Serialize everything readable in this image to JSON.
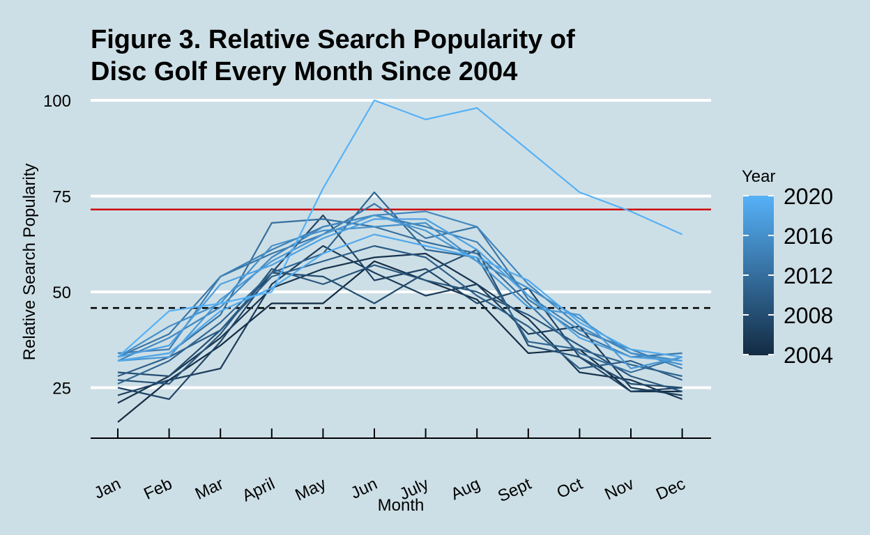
{
  "chart_data": {
    "type": "line",
    "title_line1": "Figure 3. Relative Search Popularity of",
    "title_line2": "Disc Golf Every Month Since 2004",
    "xlabel": "Month",
    "ylabel": "Relative Search Popularity",
    "categories": [
      "Jan",
      "Feb",
      "Mar",
      "April",
      "May",
      "Jun",
      "July",
      "Aug",
      "Sept",
      "Oct",
      "Nov",
      "Dec"
    ],
    "ylim": [
      13,
      105
    ],
    "yticks": [
      25,
      50,
      75,
      100
    ],
    "hlines": [
      {
        "y": 71.5,
        "style": "solid",
        "color": "#cc0000"
      },
      {
        "y": 45.8,
        "style": "dashed",
        "color": "#000000"
      }
    ],
    "legend": {
      "title": "Year",
      "placement": "right",
      "labels": [
        "2020",
        "2016",
        "2012",
        "2008",
        "2004"
      ],
      "color_low": "#132b43",
      "color_high": "#56b1f7"
    },
    "series": [
      {
        "year": 2004,
        "values": [
          16,
          27,
          36,
          47,
          47,
          58,
          53,
          48,
          34,
          35,
          24,
          24
        ]
      },
      {
        "year": 2005,
        "values": [
          21,
          28,
          38,
          51,
          56,
          59,
          60,
          52,
          43,
          29,
          27,
          22
        ]
      },
      {
        "year": 2006,
        "values": [
          23,
          27,
          30,
          52,
          62,
          55,
          49,
          52,
          39,
          41,
          25,
          23
        ]
      },
      {
        "year": 2007,
        "values": [
          25,
          22,
          37,
          55,
          70,
          53,
          56,
          47,
          51,
          33,
          24,
          25
        ]
      },
      {
        "year": 2008,
        "values": [
          29,
          28,
          40,
          55,
          54,
          47,
          55,
          61,
          36,
          33,
          26,
          25
        ]
      },
      {
        "year": 2009,
        "values": [
          27,
          26,
          39,
          56,
          52,
          57,
          53,
          50,
          44,
          36,
          28,
          24
        ]
      },
      {
        "year": 2010,
        "values": [
          28,
          33,
          40,
          54,
          58,
          62,
          59,
          49,
          41,
          30,
          32,
          27
        ]
      },
      {
        "year": 2011,
        "values": [
          26,
          32,
          42,
          55,
          60,
          76,
          61,
          59,
          37,
          35,
          31,
          28
        ]
      },
      {
        "year": 2012,
        "values": [
          32,
          34,
          44,
          68,
          69,
          67,
          63,
          60,
          47,
          34,
          29,
          33
        ]
      },
      {
        "year": 2013,
        "values": [
          33,
          39,
          54,
          60,
          65,
          73,
          64,
          67,
          48,
          39,
          33,
          34
        ]
      },
      {
        "year": 2014,
        "values": [
          34,
          35,
          54,
          61,
          67,
          70,
          67,
          63,
          49,
          40,
          35,
          30
        ]
      },
      {
        "year": 2015,
        "values": [
          32,
          38,
          46,
          59,
          67,
          70,
          71,
          67,
          52,
          41,
          34,
          32
        ]
      },
      {
        "year": 2016,
        "values": [
          33,
          41,
          47,
          62,
          66,
          67,
          68,
          58,
          51,
          43,
          34,
          31
        ]
      },
      {
        "year": 2017,
        "values": [
          32,
          33,
          48,
          58,
          65,
          70,
          66,
          58,
          46,
          44,
          30,
          33
        ]
      },
      {
        "year": 2018,
        "values": [
          33,
          36,
          52,
          57,
          64,
          69,
          69,
          61,
          49,
          38,
          33,
          32
        ]
      },
      {
        "year": 2019,
        "values": [
          32,
          34,
          45,
          51,
          60,
          65,
          62,
          59,
          53,
          42,
          35,
          33
        ]
      },
      {
        "year": 2020,
        "values": [
          33,
          45,
          47,
          50,
          77,
          100,
          95,
          98,
          87,
          76,
          71,
          65
        ]
      }
    ]
  }
}
